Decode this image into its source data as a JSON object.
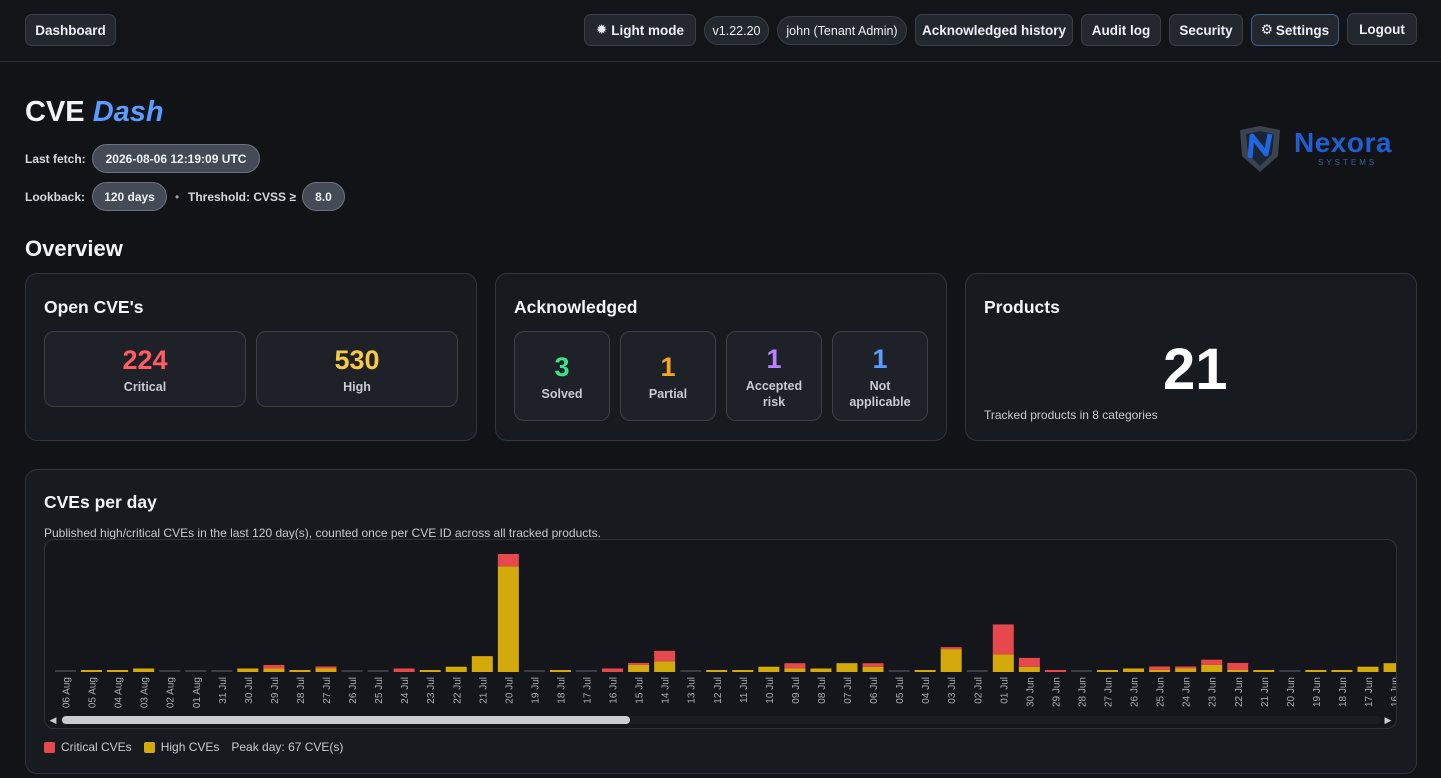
{
  "nav": {
    "dashboard": "Dashboard",
    "light_mode": "Light mode",
    "version": "v1.22.20",
    "user": "john (Tenant Admin)",
    "ack_history": "Acknowledged history",
    "audit_log": "Audit log",
    "security": "Security",
    "settings": "Settings",
    "logout": "Logout"
  },
  "header": {
    "title_main": "CVE",
    "title_accent": "Dash",
    "last_fetch_label": "Last fetch:",
    "last_fetch": "2026-08-06 12:19:09 UTC",
    "lookback_label": "Lookback:",
    "lookback": "120 days",
    "threshold_label": "Threshold: CVSS ≥",
    "threshold": "8.0",
    "logo_name": "Nexora",
    "logo_sub": "SYSTEMS"
  },
  "overview": {
    "title": "Overview",
    "open": {
      "title": "Open CVE's",
      "critical": "224",
      "critical_label": "Critical",
      "high": "530",
      "high_label": "High"
    },
    "ack": {
      "title": "Acknowledged",
      "solved": "3",
      "solved_label": "Solved",
      "partial": "1",
      "partial_label": "Partial",
      "accepted": "1",
      "accepted_label_1": "Accepted",
      "accepted_label_2": "risk",
      "na": "1",
      "na_label_1": "Not",
      "na_label_2": "applicable"
    },
    "products": {
      "title": "Products",
      "count": "21",
      "subtitle": "Tracked products in 8 categories"
    }
  },
  "cves_per_day": {
    "title": "CVEs per day",
    "subtitle": "Published high/critical CVEs in the last 120 day(s), counted once per CVE ID across all tracked products.",
    "legend_critical": "Critical CVEs",
    "legend_high": "High CVEs",
    "peak": "Peak day: 67 CVE(s)"
  },
  "colors": {
    "critical": "#e5484d",
    "high": "#d4a90c",
    "zero": "#3a3d43"
  },
  "chart_data": {
    "type": "bar",
    "stacked": true,
    "categories": [
      "06 Aug",
      "05 Aug",
      "04 Aug",
      "03 Aug",
      "02 Aug",
      "01 Aug",
      "31 Jul",
      "30 Jul",
      "29 Jul",
      "28 Jul",
      "27 Jul",
      "26 Jul",
      "25 Jul",
      "24 Jul",
      "23 Jul",
      "22 Jul",
      "21 Jul",
      "20 Jul",
      "19 Jul",
      "18 Jul",
      "17 Jul",
      "16 Jul",
      "15 Jul",
      "14 Jul",
      "13 Jul",
      "12 Jul",
      "11 Jul",
      "10 Jul",
      "09 Jul",
      "08 Jul",
      "07 Jul",
      "06 Jul",
      "05 Jul",
      "04 Jul",
      "03 Jul",
      "02 Jul",
      "01 Jul",
      "30 Jun",
      "29 Jun",
      "28 Jun",
      "27 Jun",
      "26 Jun",
      "25 Jun",
      "24 Jun",
      "23 Jun",
      "22 Jun",
      "21 Jun",
      "20 Jun",
      "19 Jun",
      "18 Jun",
      "17 Jun",
      "16 Jun"
    ],
    "series": [
      {
        "name": "Critical CVEs",
        "values": [
          0,
          0,
          0,
          0,
          0,
          0,
          0,
          0,
          2,
          0,
          1,
          0,
          0,
          2,
          0,
          0,
          0,
          7,
          0,
          0,
          0,
          2,
          1,
          6,
          0,
          0,
          0,
          0,
          3,
          0,
          0,
          2,
          0,
          0,
          1,
          0,
          17,
          5,
          1,
          0,
          0,
          0,
          2,
          1,
          3,
          4,
          0,
          0,
          0,
          0,
          0,
          0
        ]
      },
      {
        "name": "High CVEs",
        "values": [
          0,
          1,
          1,
          2,
          0,
          0,
          0,
          2,
          2,
          1,
          2,
          0,
          0,
          0,
          1,
          3,
          9,
          60,
          0,
          1,
          0,
          0,
          4,
          6,
          0,
          1,
          1,
          3,
          2,
          2,
          5,
          3,
          0,
          1,
          13,
          0,
          10,
          3,
          0,
          0,
          1,
          2,
          1,
          2,
          4,
          1,
          1,
          0,
          1,
          1,
          3,
          5
        ]
      }
    ],
    "ylim": [
      0,
      67
    ],
    "peak": 67
  }
}
